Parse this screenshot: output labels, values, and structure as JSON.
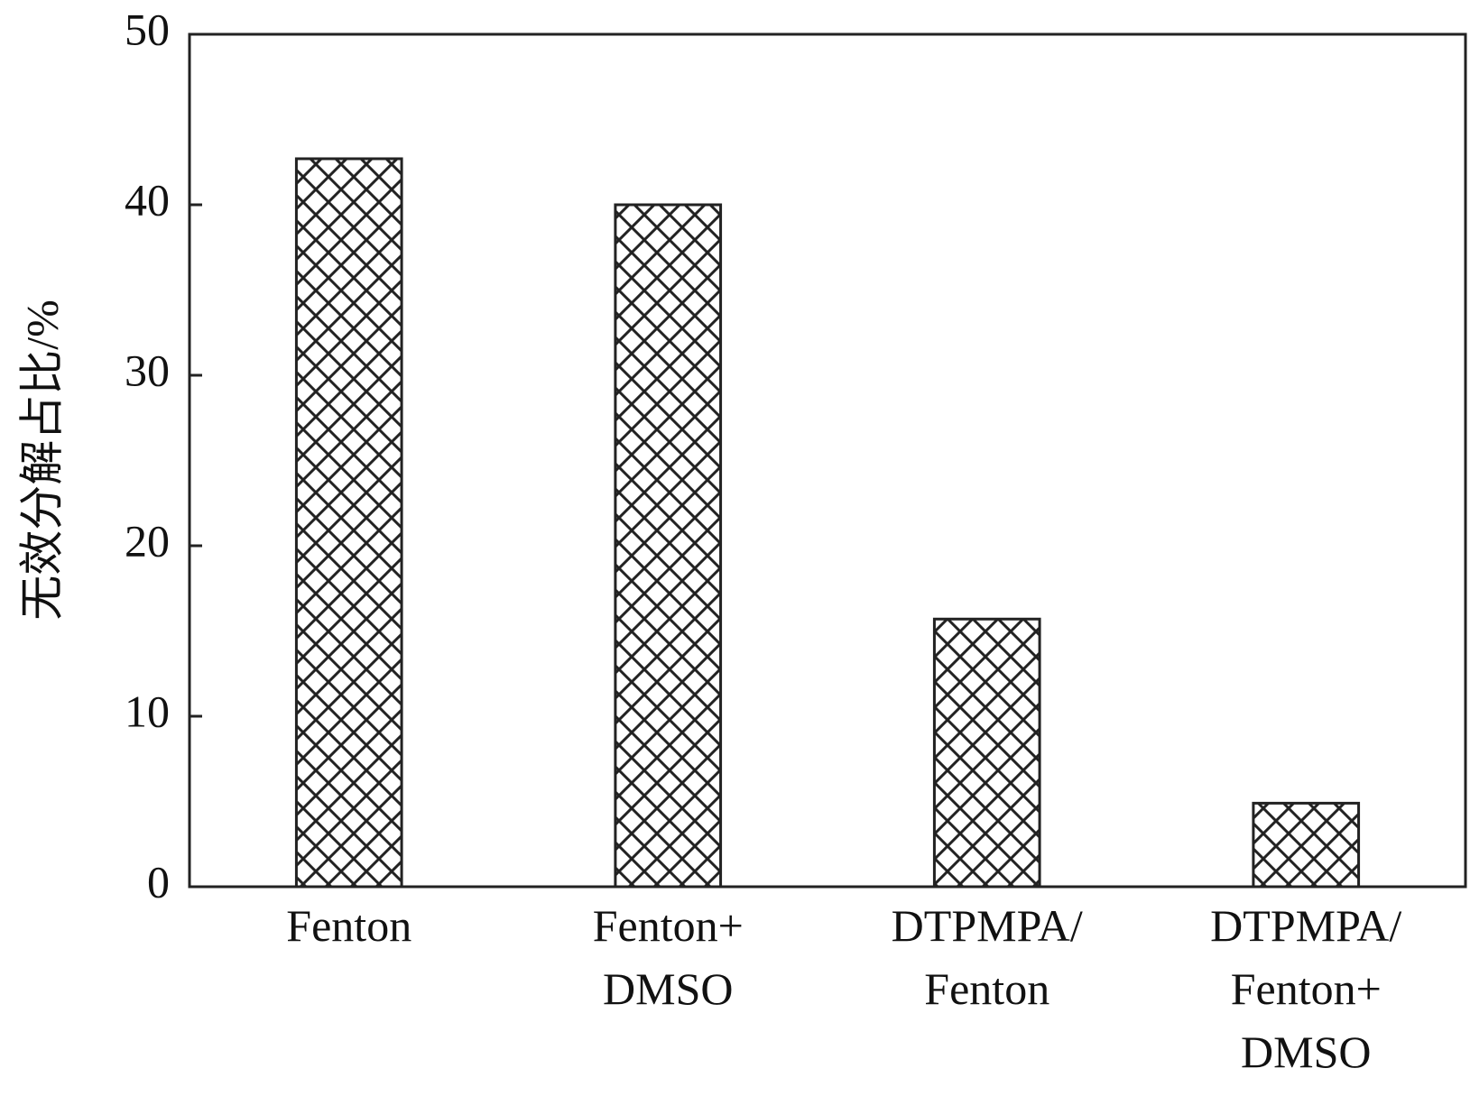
{
  "chart_data": {
    "type": "bar",
    "y_label": "无效分解占比/%",
    "categories": [
      "Fenton",
      "Fenton+\nDMSO",
      "DTPMPA/\nFenton",
      "DTPMPA/\nFenton+\nDMSO"
    ],
    "values": [
      42.7,
      40.0,
      15.7,
      4.9
    ],
    "color": "#222222",
    "hatch": "crosshatch",
    "ylim": [
      0,
      50
    ],
    "yticks": [
      0,
      10,
      20,
      30,
      40,
      50
    ],
    "grid": false
  }
}
